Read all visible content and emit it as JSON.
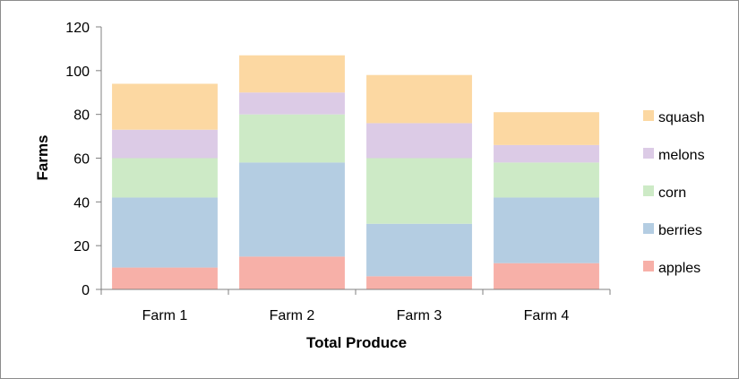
{
  "chart_data": {
    "type": "bar",
    "stacked": true,
    "title": "",
    "xlabel": "Total Produce",
    "ylabel": "Farms",
    "ylim": [
      0,
      120
    ],
    "yticks": [
      0,
      20,
      40,
      60,
      80,
      100,
      120
    ],
    "categories": [
      "Farm 1",
      "Farm 2",
      "Farm 3",
      "Farm 4"
    ],
    "series": [
      {
        "name": "apples",
        "values": [
          10,
          15,
          6,
          12
        ],
        "color": "#f7b0a8"
      },
      {
        "name": "berries",
        "values": [
          32,
          43,
          24,
          30
        ],
        "color": "#b4cde2"
      },
      {
        "name": "corn",
        "values": [
          18,
          22,
          30,
          16
        ],
        "color": "#cdeac6"
      },
      {
        "name": "melons",
        "values": [
          13,
          10,
          16,
          8
        ],
        "color": "#dccbe6"
      },
      {
        "name": "squash",
        "values": [
          21,
          17,
          22,
          15
        ],
        "color": "#fcd8a2"
      }
    ],
    "legend_position": "right",
    "legend_order": [
      "squash",
      "melons",
      "corn",
      "berries",
      "apples"
    ],
    "grid": false
  }
}
